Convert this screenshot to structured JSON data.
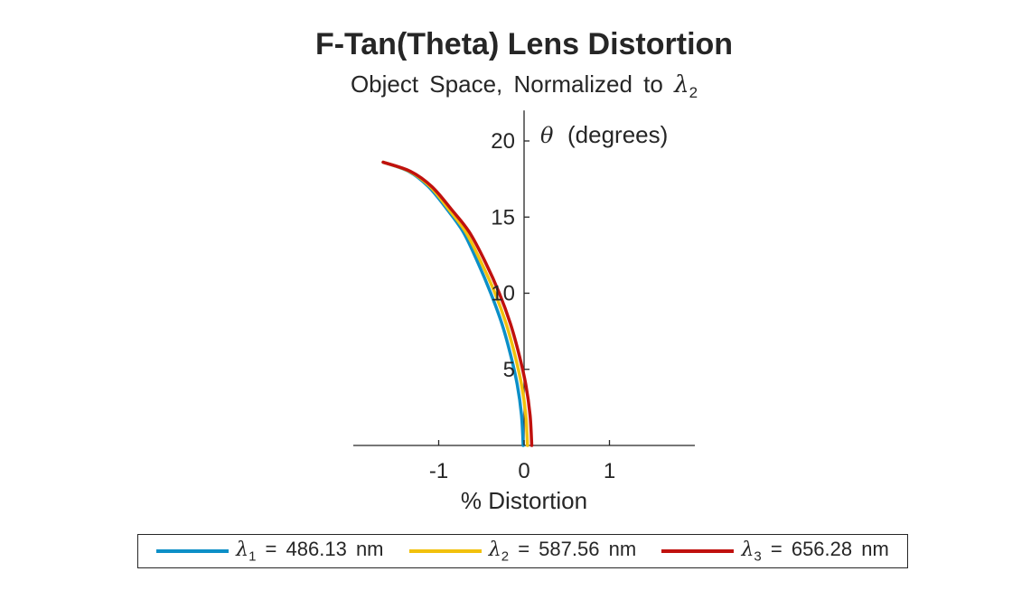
{
  "chart_data": {
    "type": "line",
    "title": "F-Tan(Theta) Lens Distortion",
    "subtitle": "Object Space, Normalized to",
    "subtitle_symbol": "λ",
    "subtitle_subscript": "2",
    "xlabel": "% Distortion",
    "ylabel_symbol": "θ",
    "ylabel": "(degrees)",
    "xlim": [
      -2,
      2
    ],
    "ylim": [
      0,
      22
    ],
    "xticks": [
      -1,
      0,
      1
    ],
    "xtick_labels": [
      "-1",
      "0",
      "1"
    ],
    "yticks": [
      5,
      10,
      15,
      20
    ],
    "ytick_labels": [
      "5",
      "10",
      "15",
      "20"
    ],
    "grid": false,
    "legend_placement": "bottom",
    "series": [
      {
        "name": "λ1 = 486.13 nm",
        "symbol": "λ",
        "subscript": "1",
        "value": "486.13",
        "unit": "nm",
        "color": "#0C8FC7",
        "x": [
          -0.01,
          -0.03,
          -0.08,
          -0.16,
          -0.26,
          -0.39,
          -0.54,
          -0.71,
          -0.9,
          -1.12,
          -1.35,
          -1.65
        ],
        "y": [
          0,
          2,
          4,
          6,
          8,
          10,
          12,
          14,
          15.5,
          17,
          18,
          18.6
        ]
      },
      {
        "name": "λ2 = 587.56 nm",
        "symbol": "λ",
        "subscript": "2",
        "value": "587.56",
        "unit": "nm",
        "color": "#F2C10C",
        "x": [
          0.04,
          0.02,
          -0.03,
          -0.11,
          -0.21,
          -0.34,
          -0.5,
          -0.68,
          -0.88,
          -1.1,
          -1.34,
          -1.65
        ],
        "y": [
          0,
          2,
          4,
          6,
          8,
          10,
          12,
          14,
          15.5,
          17,
          18,
          18.6
        ]
      },
      {
        "name": "λ3 = 656.28 nm",
        "symbol": "λ",
        "subscript": "3",
        "value": "656.28",
        "unit": "nm",
        "color": "#C0110E",
        "x": [
          0.09,
          0.07,
          0.02,
          -0.06,
          -0.16,
          -0.29,
          -0.45,
          -0.64,
          -0.85,
          -1.08,
          -1.33,
          -1.65
        ],
        "y": [
          0,
          2,
          4,
          6,
          8,
          10,
          12,
          14,
          15.5,
          17,
          18,
          18.6
        ]
      }
    ]
  }
}
